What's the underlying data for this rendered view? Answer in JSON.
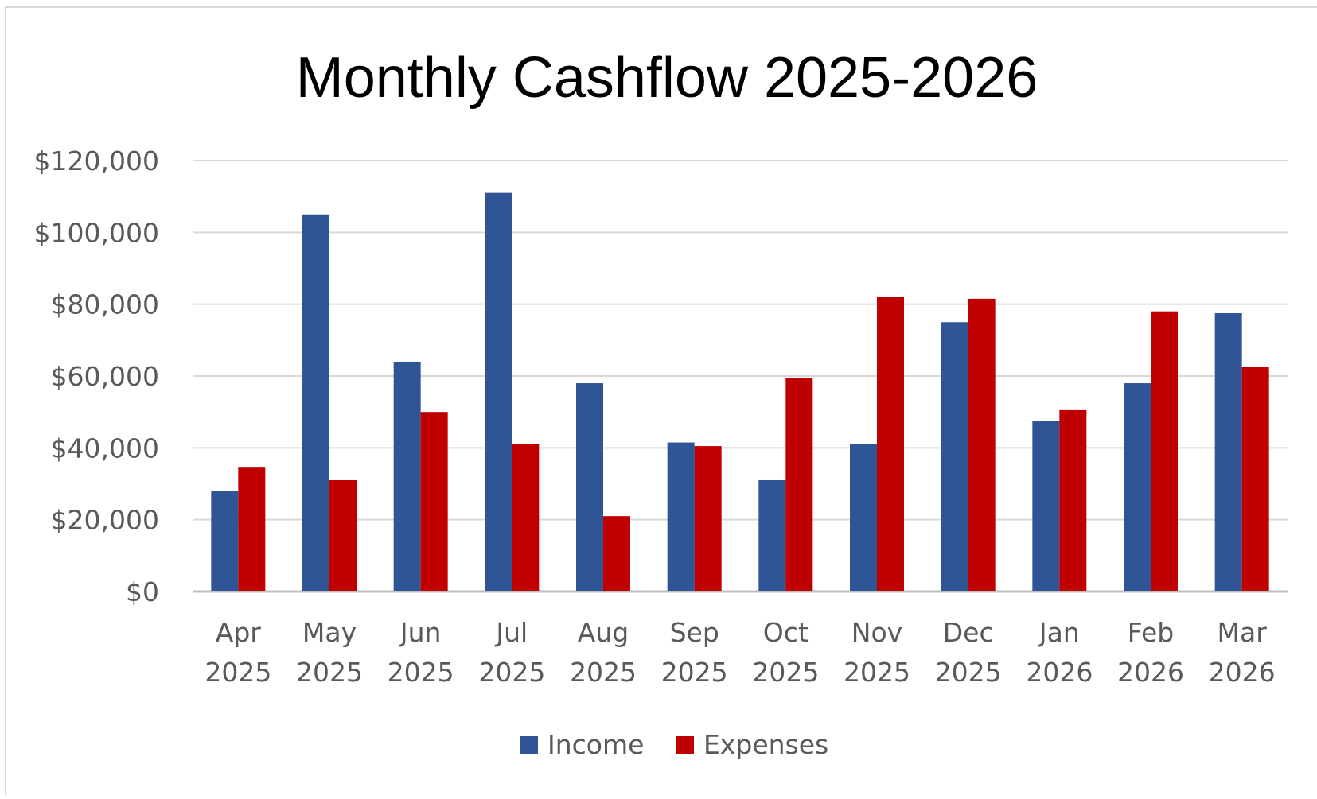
{
  "chart_data": {
    "type": "bar",
    "title": "Monthly Cashflow 2025-2026",
    "categories": [
      [
        "Apr",
        "2025"
      ],
      [
        "May",
        "2025"
      ],
      [
        "Jun",
        "2025"
      ],
      [
        "Jul",
        "2025"
      ],
      [
        "Aug",
        "2025"
      ],
      [
        "Sep",
        "2025"
      ],
      [
        "Oct",
        "2025"
      ],
      [
        "Nov",
        "2025"
      ],
      [
        "Dec",
        "2025"
      ],
      [
        "Jan",
        "2026"
      ],
      [
        "Feb",
        "2026"
      ],
      [
        "Mar",
        "2026"
      ]
    ],
    "series": [
      {
        "name": "Income",
        "color": "#2f5597",
        "values": [
          28000,
          105000,
          64000,
          111000,
          58000,
          41500,
          31000,
          41000,
          75000,
          47500,
          58000,
          77500
        ]
      },
      {
        "name": "Expenses",
        "color": "#c00000",
        "values": [
          34500,
          31000,
          50000,
          41000,
          21000,
          40500,
          59500,
          82000,
          81500,
          50500,
          78000,
          62500
        ]
      }
    ],
    "ylim": [
      0,
      120000
    ],
    "yticks": [
      0,
      20000,
      40000,
      60000,
      80000,
      100000,
      120000
    ],
    "ytick_labels": [
      "$0",
      "$20,000",
      "$40,000",
      "$60,000",
      "$80,000",
      "$100,000",
      "$120,000"
    ],
    "grid": true,
    "legend_position": "bottom"
  }
}
